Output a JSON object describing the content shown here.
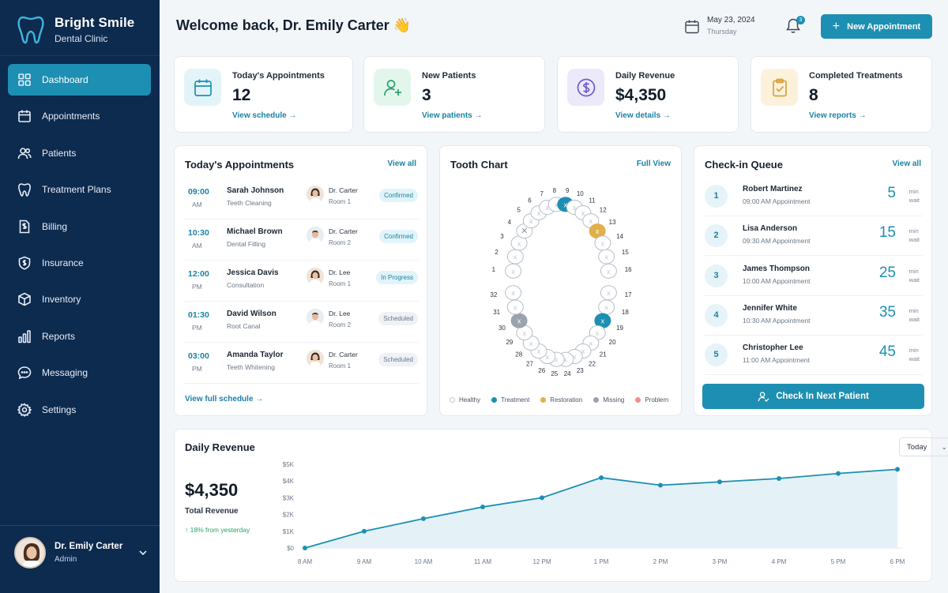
{
  "brand": {
    "name": "Bright Smile",
    "subtitle": "Dental Clinic"
  },
  "nav": [
    {
      "label": "Dashboard",
      "icon": "grid-icon",
      "active": true
    },
    {
      "label": "Appointments",
      "icon": "calendar-icon"
    },
    {
      "label": "Patients",
      "icon": "users-icon"
    },
    {
      "label": "Treatment Plans",
      "icon": "tooth-icon"
    },
    {
      "label": "Billing",
      "icon": "invoice-icon"
    },
    {
      "label": "Insurance",
      "icon": "shield-icon"
    },
    {
      "label": "Inventory",
      "icon": "box-icon"
    },
    {
      "label": "Reports",
      "icon": "bar-chart-icon"
    },
    {
      "label": "Messaging",
      "icon": "chat-icon"
    },
    {
      "label": "Settings",
      "icon": "gear-icon"
    }
  ],
  "user": {
    "name": "Dr. Emily Carter",
    "role": "Admin"
  },
  "header": {
    "welcome": "Welcome back, Dr. Emily Carter 👋",
    "date": "May 23, 2024",
    "weekday": "Thursday",
    "notifications": "3",
    "new_appointment": "New Appointment"
  },
  "stats": [
    {
      "label": "Today's Appointments",
      "value": "12",
      "link": "View schedule →",
      "icon": "calendar-icon",
      "color": "#1d8fb2",
      "bg": "#e3f4f9"
    },
    {
      "label": "New Patients",
      "value": "3",
      "link": "View patients →",
      "icon": "user-plus-icon",
      "color": "#24a26a",
      "bg": "#e3f6ec"
    },
    {
      "label": "Daily Revenue",
      "value": "$4,350",
      "link": "View details →",
      "icon": "dollar-icon",
      "color": "#6d5bd0",
      "bg": "#ece9fb"
    },
    {
      "label": "Completed Treatments",
      "value": "8",
      "link": "View reports →",
      "icon": "clipboard-check-icon",
      "color": "#d9a23a",
      "bg": "#fcf2dc"
    }
  ],
  "appointments": {
    "title": "Today's Appointments",
    "view_all": "View all",
    "footer": "View full schedule →",
    "rows": [
      {
        "time": "09:00",
        "ampm": "AM",
        "name": "Sarah Johnson",
        "type": "Teeth Cleaning",
        "doctor": "Dr. Carter",
        "room": "Room 1",
        "status": "Confirmed",
        "status_kind": "confirmed",
        "doc_gender": "f"
      },
      {
        "time": "10:30",
        "ampm": "AM",
        "name": "Michael Brown",
        "type": "Dental Filling",
        "doctor": "Dr. Carter",
        "room": "Room 2",
        "status": "Confirmed",
        "status_kind": "confirmed",
        "doc_gender": "m"
      },
      {
        "time": "12:00",
        "ampm": "PM",
        "name": "Jessica Davis",
        "type": "Consultation",
        "doctor": "Dr. Lee",
        "room": "Room 1",
        "status": "In Progress",
        "status_kind": "progress",
        "doc_gender": "f"
      },
      {
        "time": "01:30",
        "ampm": "PM",
        "name": "David Wilson",
        "type": "Root Canal",
        "doctor": "Dr. Lee",
        "room": "Room 2",
        "status": "Scheduled",
        "status_kind": "scheduled",
        "doc_gender": "m"
      },
      {
        "time": "03:00",
        "ampm": "PM",
        "name": "Amanda Taylor",
        "type": "Teeth Whitening",
        "doctor": "Dr. Carter",
        "room": "Room 1",
        "status": "Scheduled",
        "status_kind": "scheduled",
        "doc_gender": "f"
      }
    ]
  },
  "tooth_chart": {
    "title": "Tooth Chart",
    "full_view": "Full View",
    "upper_numbers": [
      "1",
      "2",
      "3",
      "4",
      "5",
      "6",
      "7",
      "8",
      "9",
      "10",
      "11",
      "12",
      "13",
      "14",
      "15",
      "16"
    ],
    "lower_numbers": [
      "17",
      "18",
      "19",
      "20",
      "21",
      "22",
      "23",
      "24",
      "25",
      "26",
      "27",
      "28",
      "29",
      "30",
      "31",
      "32"
    ],
    "legend": [
      {
        "label": "Healthy",
        "color": "#ffffff"
      },
      {
        "label": "Treatment",
        "color": "#1d8fb2"
      },
      {
        "label": "Restoration",
        "color": "#e0b04a"
      },
      {
        "label": "Missing",
        "color": "#9aa3ad"
      },
      {
        "label": "Problem",
        "color": "#ef8f8f"
      }
    ]
  },
  "queue": {
    "title": "Check-in Queue",
    "view_all": "View all",
    "wait_unit_1": "min",
    "wait_unit_2": "wait",
    "button": "Check In Next Patient",
    "rows": [
      {
        "pos": "1",
        "name": "Robert Martinez",
        "time": "09:00 AM Appointment",
        "wait": "5"
      },
      {
        "pos": "2",
        "name": "Lisa Anderson",
        "time": "09:30 AM Appointment",
        "wait": "15"
      },
      {
        "pos": "3",
        "name": "James Thompson",
        "time": "10:00 AM Appointment",
        "wait": "25"
      },
      {
        "pos": "4",
        "name": "Jennifer White",
        "time": "10:30 AM Appointment",
        "wait": "35"
      },
      {
        "pos": "5",
        "name": "Christopher Lee",
        "time": "11:00 AM Appointment",
        "wait": "45"
      }
    ]
  },
  "revenue": {
    "title": "Daily Revenue",
    "total": "$4,350",
    "total_label": "Total Revenue",
    "change": "18% from yesterday",
    "period": "Today"
  },
  "chart_data": {
    "type": "area",
    "title": "Daily Revenue",
    "x": [
      "8 AM",
      "9 AM",
      "10 AM",
      "11 AM",
      "12 PM",
      "1 PM",
      "2 PM",
      "3 PM",
      "4 PM",
      "5 PM",
      "6 PM"
    ],
    "series": [
      {
        "values": [
          0,
          1000,
          1750,
          2450,
          3000,
          4200,
          3750,
          3950,
          4150,
          4450,
          4700
        ]
      }
    ],
    "yticks": [
      "$0",
      "$1K",
      "$2K",
      "$3K",
      "$4K",
      "$5K"
    ],
    "ylim": [
      0,
      5000
    ],
    "grid": false,
    "color": "#1d8fb2"
  }
}
